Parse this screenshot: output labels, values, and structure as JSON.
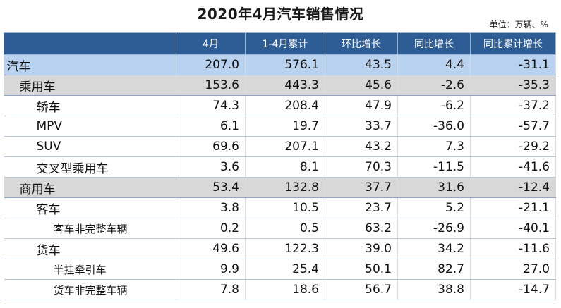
{
  "title": "2020年4月汽车销售情况",
  "unit": "单位：万辆、%",
  "columns": [
    "",
    "4月",
    "1-4月累计",
    "环比增长",
    "同比增长",
    "同比累计增长"
  ],
  "rows": [
    {
      "level": 0,
      "cells": [
        "汽车",
        "207.0",
        "576.1",
        "43.5",
        "4.4",
        "-31.1"
      ]
    },
    {
      "level": 1,
      "cells": [
        "乘用车",
        "153.6",
        "443.3",
        "45.6",
        "-2.6",
        "-35.3"
      ]
    },
    {
      "level": 2,
      "cells": [
        "轿车",
        "74.3",
        "208.4",
        "47.9",
        "-6.2",
        "-37.2"
      ]
    },
    {
      "level": 2,
      "cells": [
        "MPV",
        "6.1",
        "19.7",
        "33.7",
        "-36.0",
        "-57.7"
      ]
    },
    {
      "level": 2,
      "cells": [
        "SUV",
        "69.6",
        "207.1",
        "43.2",
        "7.3",
        "-29.2"
      ]
    },
    {
      "level": 2,
      "cells": [
        "交叉型乘用车",
        "3.6",
        "8.1",
        "70.3",
        "-11.5",
        "-41.6"
      ]
    },
    {
      "level": 1,
      "cells": [
        "商用车",
        "53.4",
        "132.8",
        "37.7",
        "31.6",
        "-12.4"
      ]
    },
    {
      "level": 2,
      "cells": [
        "客车",
        "3.8",
        "10.5",
        "23.7",
        "5.2",
        "-21.1"
      ]
    },
    {
      "level": 3,
      "cells": [
        "客车非完整车辆",
        "0.2",
        "0.5",
        "63.2",
        "-26.9",
        "-40.1"
      ]
    },
    {
      "level": 2,
      "cells": [
        "货车",
        "49.6",
        "122.3",
        "39.0",
        "34.2",
        "-11.6"
      ]
    },
    {
      "level": 3,
      "cells": [
        "半挂牵引车",
        "9.9",
        "25.4",
        "50.1",
        "82.7",
        "27.0"
      ]
    },
    {
      "level": 3,
      "cells": [
        "货车非完整车辆",
        "7.8",
        "18.6",
        "56.7",
        "38.8",
        "-14.7"
      ]
    }
  ]
}
